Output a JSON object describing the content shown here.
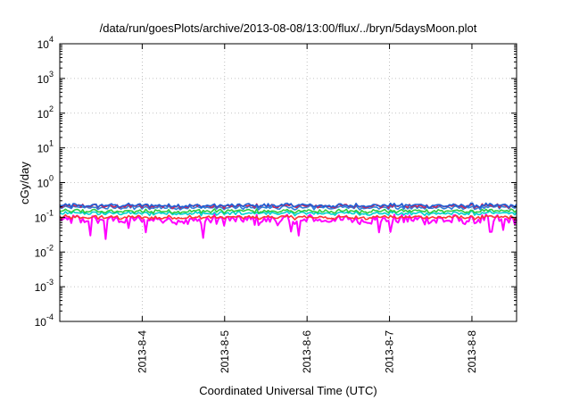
{
  "chart_data": {
    "type": "line",
    "title": "/data/run/goesPlots/archive/2013-08-08/13:00/flux/../bryn/5daysMoon.plot",
    "xlabel": "Coordinated Universal Time (UTC)",
    "ylabel": "cGy/day",
    "yscale": "log",
    "ylim_exponents": [
      -4,
      4
    ],
    "y_ticks": [
      {
        "base": "10",
        "exp": "-4"
      },
      {
        "base": "10",
        "exp": "-3"
      },
      {
        "base": "10",
        "exp": "-2"
      },
      {
        "base": "10",
        "exp": "-1"
      },
      {
        "base": "10",
        "exp": "0"
      },
      {
        "base": "10",
        "exp": "1"
      },
      {
        "base": "10",
        "exp": "2"
      },
      {
        "base": "10",
        "exp": "3"
      },
      {
        "base": "10",
        "exp": "4"
      }
    ],
    "x_ticks": [
      "2013-8-4",
      "2013-8-5",
      "2013-8-6",
      "2013-8-7",
      "2013-8-8"
    ],
    "xlim": [
      "2013-08-03 00:00",
      "2013-08-08 13:00"
    ],
    "grid": true,
    "series": [
      {
        "color": "#ff00ff",
        "approx_level": 0.085,
        "variability": "high"
      },
      {
        "color": "#ff3333",
        "approx_level": 0.1,
        "variability": "medium"
      },
      {
        "color": "#00d2d2",
        "approx_level": 0.13,
        "variability": "medium"
      },
      {
        "color": "#2ecc40",
        "approx_level": 0.15,
        "variability": "medium"
      },
      {
        "color": "#2c7fd8",
        "approx_level": 0.19,
        "variability": "medium"
      },
      {
        "color": "#cc2255",
        "approx_level": 0.21,
        "variability": "medium"
      },
      {
        "color": "#1e5fd6",
        "approx_level": 0.22,
        "variability": "medium"
      }
    ]
  }
}
